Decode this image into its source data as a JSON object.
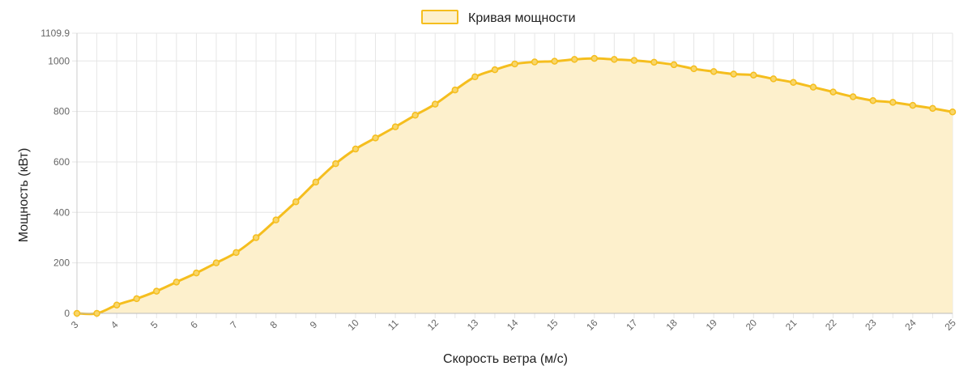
{
  "chart_data": {
    "type": "area",
    "legend": {
      "label": "Кривая мощности",
      "position": "top"
    },
    "xlabel": "Скорость ветра (м/с)",
    "ylabel": "Мощность (кВт)",
    "xlim": [
      3,
      25
    ],
    "ylim": [
      0,
      1109.9
    ],
    "x_ticks": [
      "3",
      "4",
      "5",
      "6",
      "7",
      "8",
      "9",
      "10",
      "11",
      "12",
      "13",
      "14",
      "15",
      "16",
      "17",
      "18",
      "19",
      "20",
      "21",
      "22",
      "23",
      "24",
      "25"
    ],
    "y_ticks": [
      "0",
      "200",
      "400",
      "600",
      "800",
      "1000",
      "1109.9"
    ],
    "y_tick_values": [
      0,
      200,
      400,
      600,
      800,
      1000,
      1109.9
    ],
    "grid": true,
    "colors": {
      "line": "#F5BE1E",
      "fill": "#FDF0CC",
      "point_fill": "#F8D66A",
      "grid": "#e6e6e6"
    },
    "series": [
      {
        "name": "Кривая мощности",
        "x": [
          3,
          3.5,
          4,
          4.5,
          5,
          5.5,
          6,
          6.5,
          7,
          7.5,
          8,
          8.5,
          9,
          9.5,
          10,
          10.5,
          11,
          11.5,
          12,
          12.5,
          13,
          13.5,
          14,
          14.5,
          15,
          15.5,
          16,
          16.5,
          17,
          17.5,
          18,
          18.5,
          19,
          19.5,
          20,
          20.5,
          21,
          21.5,
          22,
          22.5,
          23,
          23.5,
          24,
          24.5,
          25
        ],
        "y": [
          0,
          0,
          33,
          58,
          88,
          124,
          160,
          200,
          241,
          300,
          370,
          442,
          520,
          593,
          651,
          695,
          739,
          785,
          829,
          885,
          937,
          965,
          988,
          996,
          999,
          1006,
          1010,
          1006,
          1002,
          995,
          985,
          969,
          958,
          948,
          944,
          929,
          915,
          896,
          877,
          858,
          843,
          836,
          824,
          812,
          798
        ]
      }
    ]
  }
}
